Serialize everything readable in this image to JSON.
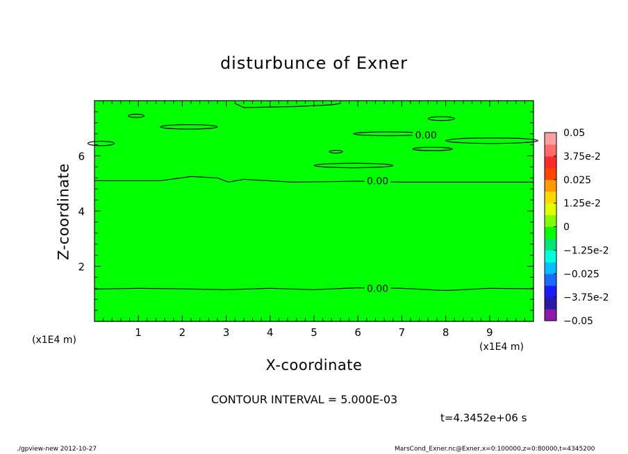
{
  "chart_data": {
    "type": "heatmap",
    "title": "disturbunce of Exner",
    "xlabel": "X-coordinate",
    "ylabel": "Z-coordinate",
    "x_unit_label": "(x1E4 m)",
    "xlim": [
      0,
      10
    ],
    "ylim": [
      0,
      8
    ],
    "x_ticks": [
      1,
      2,
      3,
      4,
      5,
      6,
      7,
      8,
      9
    ],
    "y_ticks": [
      2,
      4,
      6
    ],
    "colorbar": {
      "min": -0.05,
      "max": 0.05,
      "tick_labels": [
        "0.05",
        "3.75e-2",
        "0.025",
        "1.25e-2",
        "0",
        "−1.25e-2",
        "−0.025",
        "−3.75e-2",
        "−0.05"
      ],
      "levels_colors": [
        "#8a1aa8",
        "#2a1aa8",
        "#1a1aff",
        "#1a6aff",
        "#00bfff",
        "#00ffdd",
        "#00e676",
        "#00ff00",
        "#7fff00",
        "#e0ff00",
        "#ffd700",
        "#ff9a00",
        "#ff4500",
        "#ff2a2a",
        "#ff6a6a",
        "#ffa0a0"
      ]
    },
    "field_color": "#00ff00",
    "field_value_approx": 0,
    "contour_labels": [
      {
        "text": "0.00",
        "x": 6.45,
        "z": 5.1
      },
      {
        "text": "0.00",
        "x": 6.45,
        "z": 1.2
      },
      {
        "text": "0.00",
        "x": 7.55,
        "z": 6.75
      }
    ],
    "contour_lines": [
      {
        "name": "lower-contour",
        "points": [
          [
            0,
            1.17
          ],
          [
            1,
            1.2
          ],
          [
            2,
            1.18
          ],
          [
            3,
            1.15
          ],
          [
            4,
            1.2
          ],
          [
            5,
            1.15
          ],
          [
            6,
            1.22
          ],
          [
            7,
            1.2
          ],
          [
            8,
            1.12
          ],
          [
            9,
            1.2
          ],
          [
            10,
            1.18
          ]
        ]
      },
      {
        "name": "middle-contour",
        "points": [
          [
            0,
            5.1
          ],
          [
            1.5,
            5.1
          ],
          [
            2.2,
            5.25
          ],
          [
            2.8,
            5.2
          ],
          [
            3.05,
            5.05
          ],
          [
            3.4,
            5.15
          ],
          [
            4.5,
            5.05
          ],
          [
            6,
            5.08
          ],
          [
            7,
            5.05
          ],
          [
            8,
            5.05
          ],
          [
            10,
            5.05
          ]
        ]
      },
      {
        "name": "top-contour",
        "points": [
          [
            3.2,
            7.9
          ],
          [
            3.4,
            7.75
          ],
          [
            4.5,
            7.78
          ],
          [
            5.4,
            7.85
          ],
          [
            5.6,
            7.9
          ]
        ]
      }
    ],
    "closed_contours": [
      {
        "name": "blob-1",
        "cx": 0.95,
        "cz": 7.45,
        "rx": 0.18,
        "rz": 0.06
      },
      {
        "name": "blob-2",
        "cx": 2.15,
        "cz": 7.05,
        "rx": 0.65,
        "rz": 0.08
      },
      {
        "name": "blob-3",
        "cx": 0.15,
        "cz": 6.45,
        "rx": 0.3,
        "rz": 0.08
      },
      {
        "name": "blob-4",
        "cx": 6.7,
        "cz": 6.8,
        "rx": 0.8,
        "rz": 0.07
      },
      {
        "name": "blob-5",
        "cx": 7.9,
        "cz": 7.35,
        "rx": 0.3,
        "rz": 0.07
      },
      {
        "name": "blob-6",
        "cx": 9.05,
        "cz": 6.55,
        "rx": 1.05,
        "rz": 0.1
      },
      {
        "name": "blob-7",
        "cx": 7.7,
        "cz": 6.25,
        "rx": 0.45,
        "rz": 0.06
      },
      {
        "name": "blob-8",
        "cx": 5.5,
        "cz": 6.15,
        "rx": 0.15,
        "rz": 0.02
      },
      {
        "name": "blob-9",
        "cx": 5.9,
        "cz": 5.65,
        "rx": 0.9,
        "rz": 0.08
      }
    ]
  },
  "annotations": {
    "contour_interval": "CONTOUR INTERVAL = 5.000E-03",
    "time": "t=4.3452e+06 s",
    "footer_left": "./gpview-new  2012-10-27",
    "footer_right": "MarsCond_Exner.nc@Exner,x=0:100000,z=0:80000,t=4345200"
  }
}
